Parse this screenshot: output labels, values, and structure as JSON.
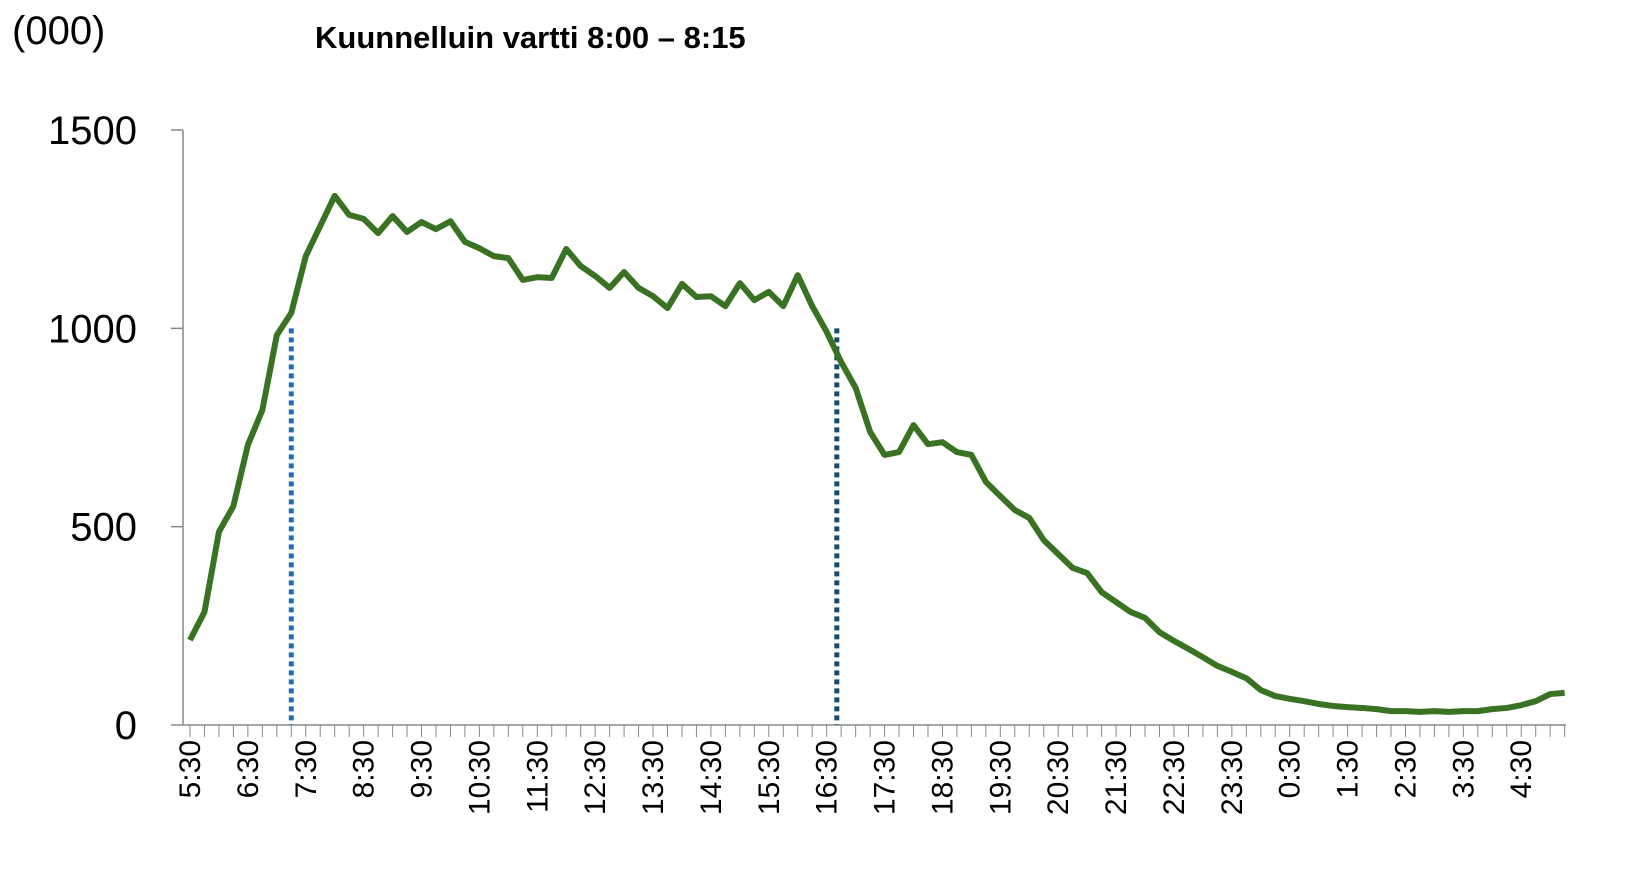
{
  "chart_data": {
    "type": "line",
    "title": "Kuunnelluin vartti 8:00 – 8:15",
    "y_label": "(000)",
    "categories": [
      "5:30",
      null,
      null,
      null,
      "6:30",
      null,
      null,
      null,
      "7:30",
      null,
      null,
      null,
      "8:30",
      null,
      null,
      null,
      "9:30",
      null,
      null,
      null,
      "10:30",
      null,
      null,
      null,
      "11:30",
      null,
      null,
      null,
      "12:30",
      null,
      null,
      null,
      "13:30",
      null,
      null,
      null,
      "14:30",
      null,
      null,
      null,
      "15:30",
      null,
      null,
      null,
      "16:30",
      null,
      null,
      null,
      "17:30",
      null,
      null,
      null,
      "18:30",
      null,
      null,
      null,
      "19:30",
      null,
      null,
      null,
      "20:30",
      null,
      null,
      null,
      "21:30",
      null,
      null,
      null,
      "22:30",
      null,
      null,
      null,
      "23:30",
      null,
      null,
      null,
      "0:30",
      null,
      null,
      null,
      "1:30",
      null,
      null,
      null,
      "2:30",
      null,
      null,
      null,
      "3:30",
      null,
      null,
      null,
      "4:30",
      null,
      null,
      null
    ],
    "series": [
      {
        "color": "#3a7224",
        "values": [
          214,
          285,
          487,
          552,
          706,
          794,
          983,
          1039,
          1182,
          1258,
          1334,
          1286,
          1276,
          1240,
          1283,
          1243,
          1268,
          1250,
          1270,
          1218,
          1202,
          1182,
          1177,
          1122,
          1129,
          1127,
          1200,
          1157,
          1132,
          1102,
          1142,
          1102,
          1081,
          1051,
          1112,
          1079,
          1081,
          1056,
          1114,
          1071,
          1092,
          1056,
          1134,
          1056,
          991,
          915,
          850,
          739,
          681,
          688,
          756,
          708,
          713,
          688,
          681,
          613,
          577,
          542,
          522,
          466,
          431,
          396,
          383,
          335,
          310,
          285,
          270,
          234,
          212,
          192,
          171,
          149,
          134,
          118,
          88,
          73,
          66,
          60,
          53,
          48,
          45,
          43,
          40,
          35,
          35,
          33,
          35,
          33,
          35,
          35,
          40,
          43,
          50,
          60,
          78,
          81
        ]
      }
    ],
    "ylim": [
      0,
      1500
    ],
    "yticks": [
      0,
      500,
      1000,
      1500
    ],
    "vlines": [
      {
        "index": 7,
        "top": 1000,
        "color": "#1f6db5"
      },
      {
        "index": 44.7,
        "top": 1000,
        "color": "#1a4a6b"
      }
    ]
  }
}
